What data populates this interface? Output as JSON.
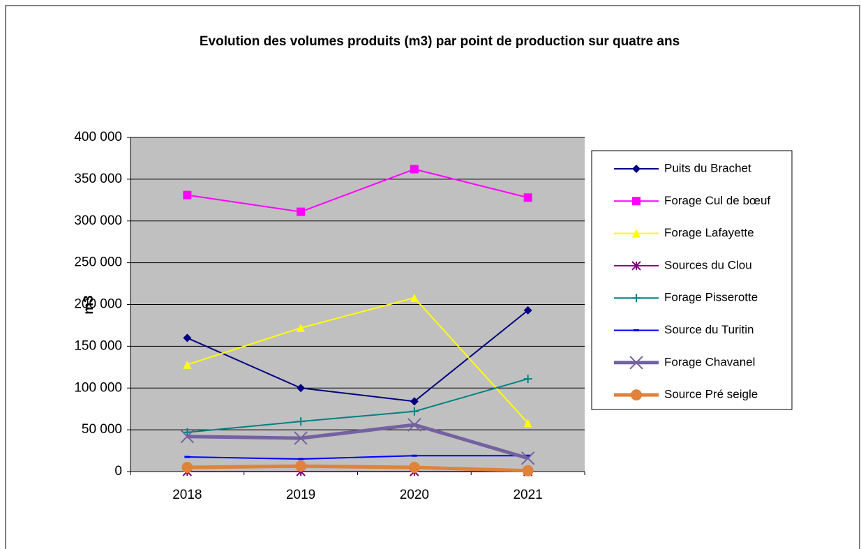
{
  "chart_data": {
    "type": "line",
    "title": "Evolution des volumes produits (m3) par point de production sur quatre ans",
    "y_label": "m3",
    "categories": [
      "2018",
      "2019",
      "2020",
      "2021"
    ],
    "ylim": [
      0,
      400000
    ],
    "yticks": [
      0,
      {
        "value": 50000,
        "label": "50 000"
      },
      {
        "value": 100000,
        "label": "100 000"
      },
      {
        "value": 150000,
        "label": "150 000"
      },
      {
        "value": 200000,
        "label": "200 000"
      },
      {
        "value": 250000,
        "label": "250 000"
      },
      {
        "value": 300000,
        "label": "300 000"
      },
      {
        "value": 350000,
        "label": "350 000"
      },
      {
        "value": 400000,
        "label": "400 000"
      }
    ],
    "grid": true,
    "legend": "right",
    "series": [
      {
        "name": "Puits du Brachet",
        "color": "#000080",
        "marker": "diamond",
        "line_width": 2,
        "values": [
          160000,
          100000,
          84000,
          193000
        ]
      },
      {
        "name": "Forage Cul de bœuf",
        "color": "#ff00ff",
        "marker": "square",
        "line_width": 2,
        "values": [
          331000,
          311000,
          362000,
          328000
        ]
      },
      {
        "name": "Forage Lafayette",
        "color": "#ffff00",
        "marker": "triangle",
        "line_width": 2,
        "values": [
          128000,
          172000,
          208000,
          58000
        ]
      },
      {
        "name": "Sources du Clou",
        "color": "#800080",
        "marker": "star",
        "line_width": 2,
        "values": [
          0,
          0,
          0,
          0
        ]
      },
      {
        "name": "Forage Pisserotte",
        "color": "#008080",
        "marker": "plus",
        "line_width": 2,
        "values": [
          47000,
          60000,
          72000,
          111000
        ]
      },
      {
        "name": "Source du Turitin",
        "color": "#0000ff",
        "marker": "dash",
        "line_width": 2,
        "values": [
          17500,
          15000,
          19000,
          19000
        ]
      },
      {
        "name": "Forage Chavanel",
        "color": "#7461a0",
        "marker": "x",
        "line_width": 5,
        "values": [
          42000,
          40000,
          56000,
          16000
        ]
      },
      {
        "name": "Source Pré seigle",
        "color": "#e0823a",
        "marker": "circle",
        "line_width": 5,
        "values": [
          5000,
          6500,
          5000,
          1000
        ]
      }
    ]
  }
}
